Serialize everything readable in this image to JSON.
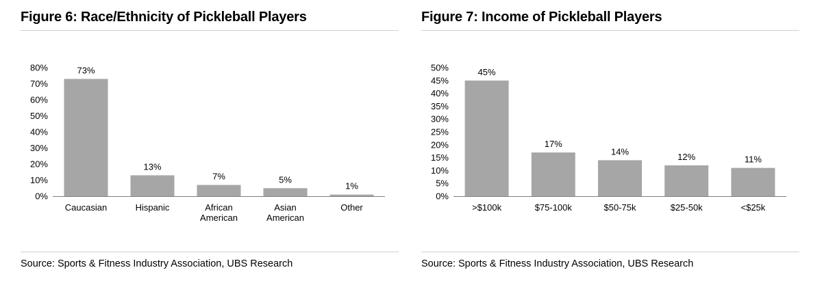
{
  "figure6": {
    "title": "Figure 6: Race/Ethnicity of Pickleball Players",
    "source": "Source: Sports & Fitness Industry Association, UBS Research"
  },
  "figure7": {
    "title": "Figure 7: Income of Pickleball Players",
    "source": "Source: Sports & Fitness Industry Association, UBS Research"
  },
  "colors": {
    "bar": "#a6a6a6",
    "axis": "#7f7f7f",
    "rule": "#d0d0d0"
  },
  "chart_data": [
    {
      "type": "bar",
      "title": "Figure 6: Race/Ethnicity of Pickleball Players",
      "categories": [
        [
          "Caucasian"
        ],
        [
          "Hispanic"
        ],
        [
          "African",
          "American"
        ],
        [
          "Asian",
          "American"
        ],
        [
          "Other"
        ]
      ],
      "values": [
        73,
        13,
        7,
        5,
        1
      ],
      "data_labels": [
        "73%",
        "13%",
        "7%",
        "5%",
        "1%"
      ],
      "ylim": [
        0,
        80
      ],
      "yticks": [
        0,
        10,
        20,
        30,
        40,
        50,
        60,
        70,
        80
      ],
      "ytick_labels": [
        "0%",
        "10%",
        "20%",
        "30%",
        "40%",
        "50%",
        "60%",
        "70%",
        "80%"
      ],
      "xlabel": "",
      "ylabel": "",
      "grid": false,
      "legend": "none"
    },
    {
      "type": "bar",
      "title": "Figure 7: Income of Pickleball Players",
      "categories": [
        [
          ">$100k"
        ],
        [
          "$75-100k"
        ],
        [
          "$50-75k"
        ],
        [
          "$25-50k"
        ],
        [
          "<$25k"
        ]
      ],
      "values": [
        45,
        17,
        14,
        12,
        11
      ],
      "data_labels": [
        "45%",
        "17%",
        "14%",
        "12%",
        "11%"
      ],
      "ylim": [
        0,
        50
      ],
      "yticks": [
        0,
        5,
        10,
        15,
        20,
        25,
        30,
        35,
        40,
        45,
        50
      ],
      "ytick_labels": [
        "0%",
        "5%",
        "10%",
        "15%",
        "20%",
        "25%",
        "30%",
        "35%",
        "40%",
        "45%",
        "50%"
      ],
      "xlabel": "",
      "ylabel": "",
      "grid": false,
      "legend": "none"
    }
  ]
}
